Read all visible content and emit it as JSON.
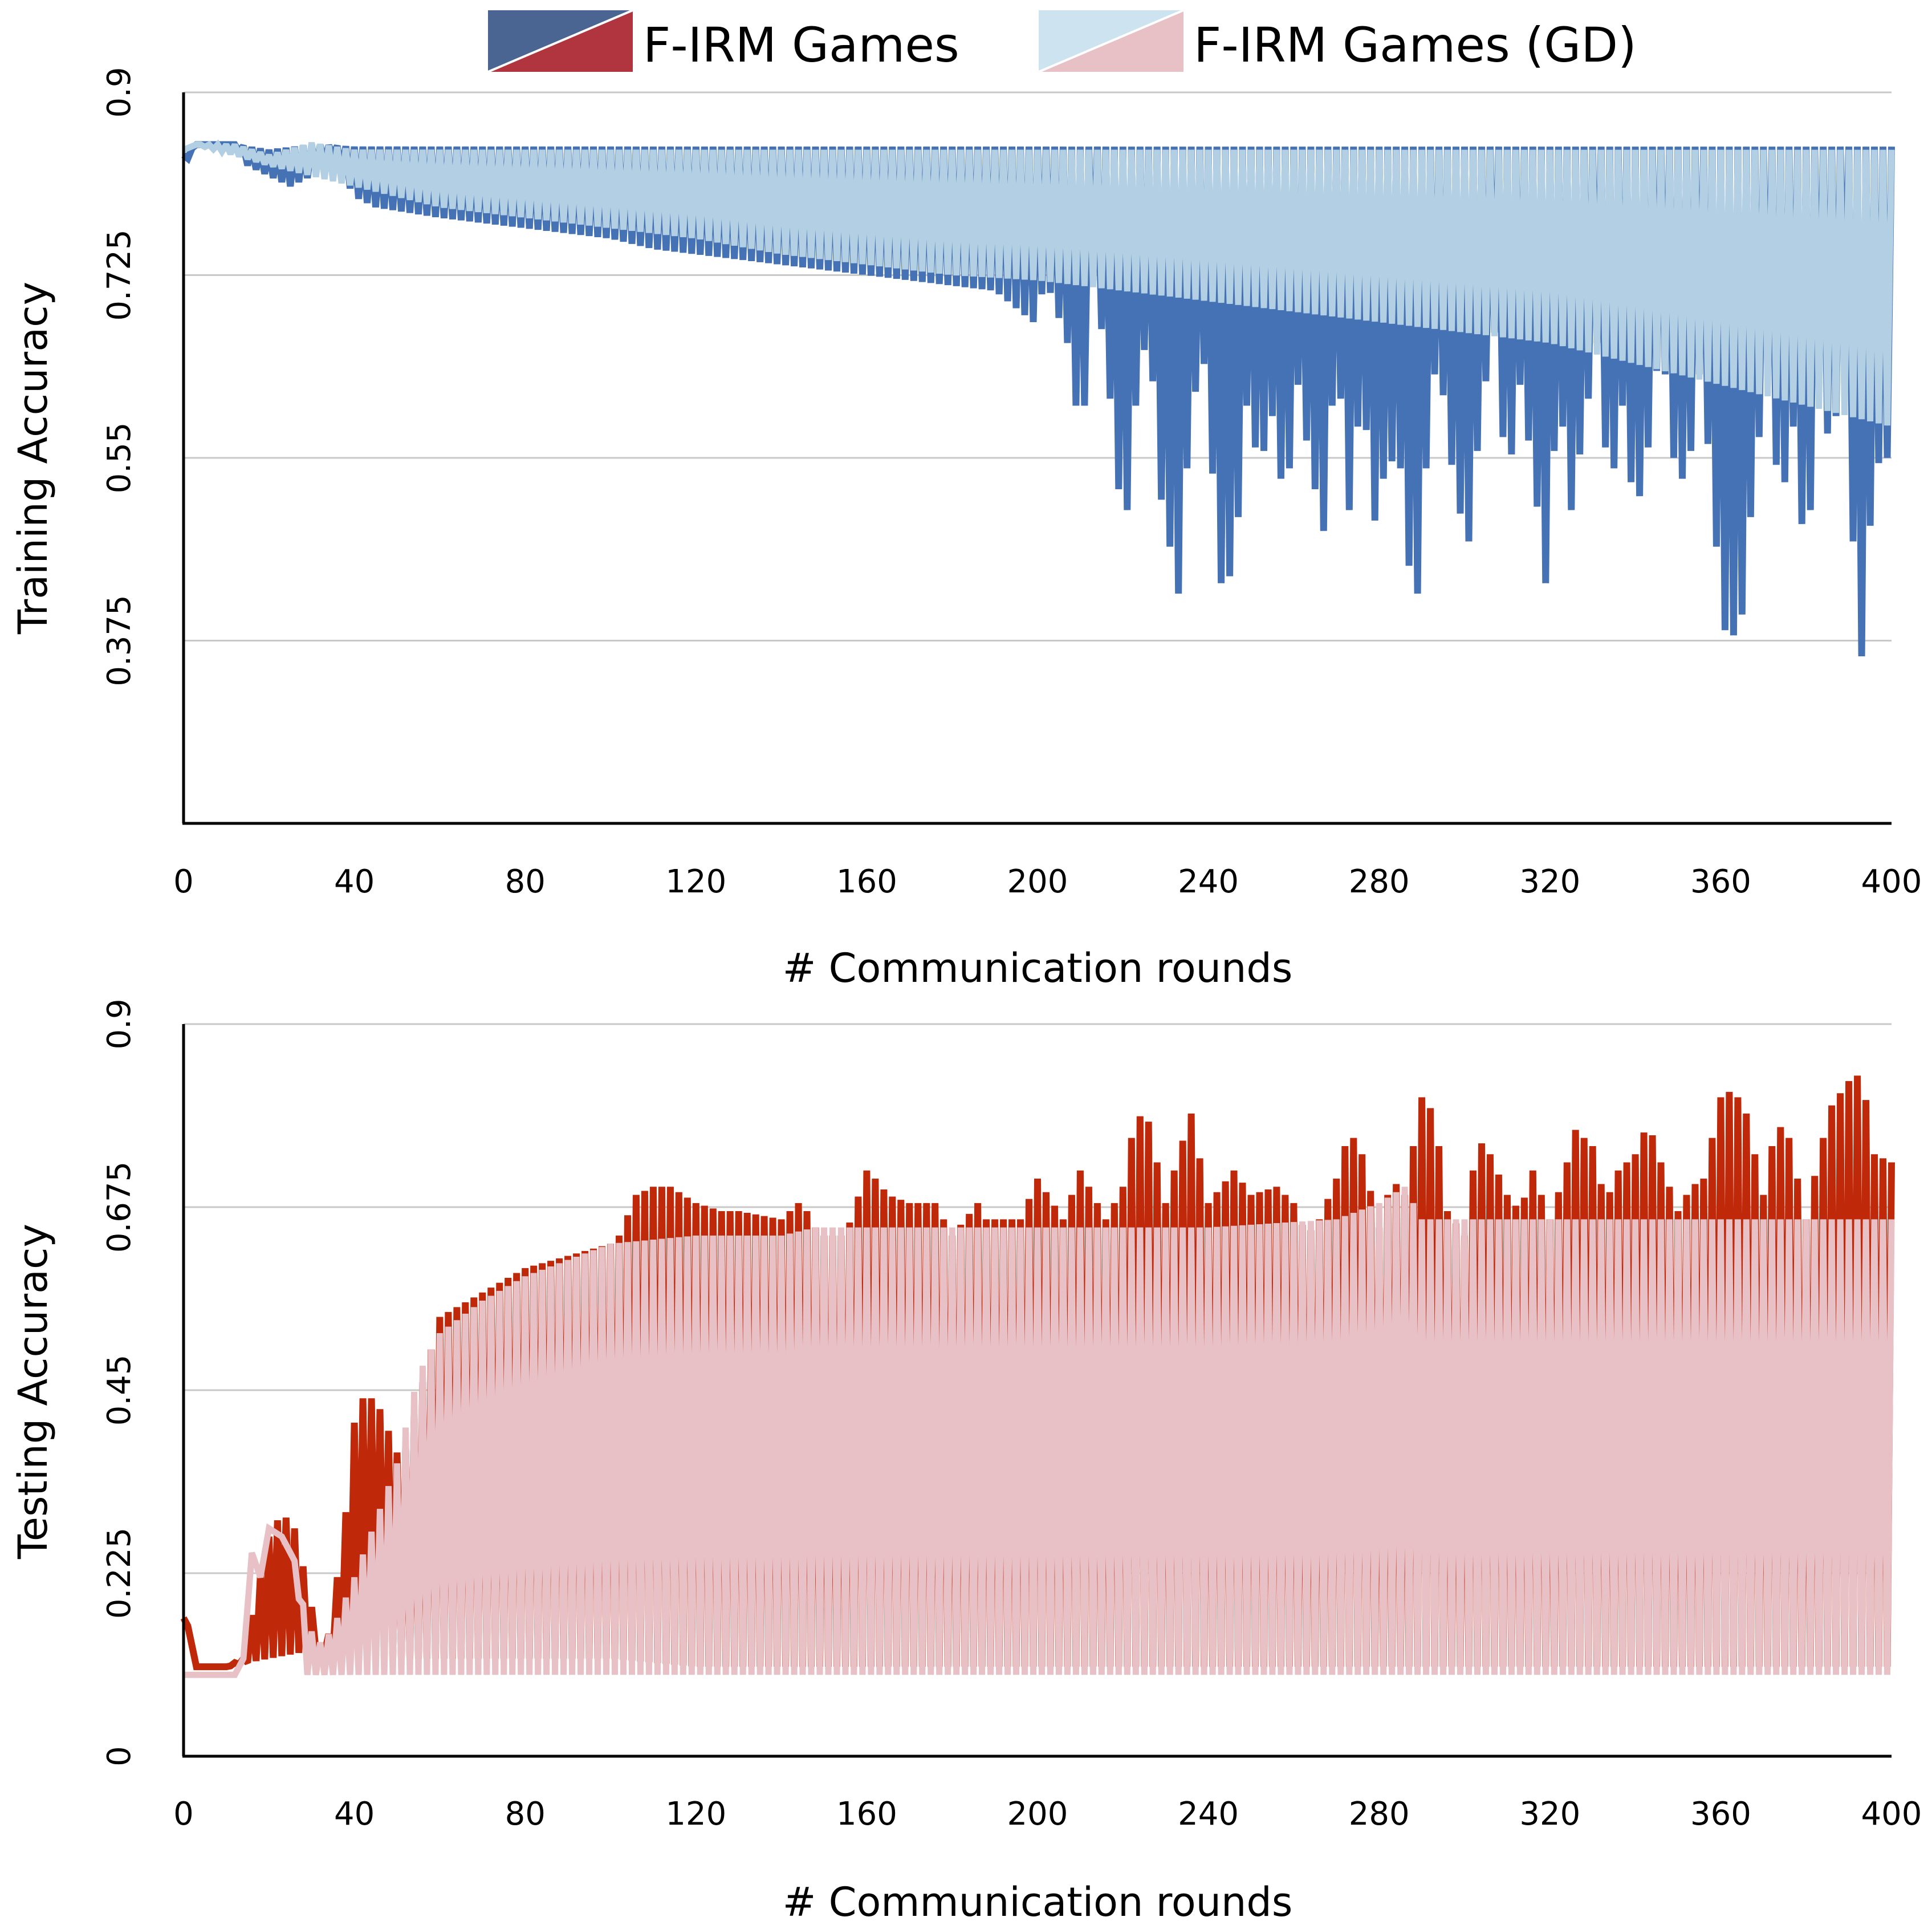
{
  "legend": [
    {
      "label": "F-IRM Games",
      "colors": [
        "#4b6593",
        "#b0353f"
      ]
    },
    {
      "label": "F-IRM Games (GD)",
      "colors": [
        "#cde4f0",
        "#e8c1c7"
      ]
    }
  ],
  "chart_data": [
    {
      "type": "line",
      "title": "",
      "xlabel": "# Communication rounds",
      "ylabel": "Training Accuracy",
      "xlim": [
        0,
        400
      ],
      "ylim": [
        0.2,
        0.9
      ],
      "x_ticks": [
        "0",
        "40",
        "80",
        "120",
        "160",
        "200",
        "240",
        "280",
        "320",
        "360",
        "400"
      ],
      "y_ticks": [
        {
          "value": 0.375,
          "label": "0.375"
        },
        {
          "value": 0.55,
          "label": "0.55"
        },
        {
          "value": 0.725,
          "label": "0.725"
        },
        {
          "value": 0.9,
          "label": "0.9"
        }
      ],
      "grid": true,
      "series": [
        {
          "name": "F-IRM Games",
          "color": "#4472b4",
          "alternating": true,
          "high_x": [
            0,
            3,
            12,
            20,
            30,
            40,
            80,
            120,
            160,
            200,
            240,
            280,
            320,
            360,
            400
          ],
          "high_y": [
            0.84,
            0.85,
            0.85,
            0.845,
            0.85,
            0.848,
            0.848,
            0.848,
            0.848,
            0.848,
            0.848,
            0.848,
            0.848,
            0.848,
            0.848
          ],
          "low_x": [
            0,
            3,
            12,
            15,
            20,
            25,
            30,
            35,
            40,
            45,
            60,
            80,
            100,
            110,
            120,
            130,
            140,
            150,
            160,
            170,
            180,
            190,
            196,
            199,
            202,
            207,
            209,
            211,
            213,
            216,
            219,
            221,
            223,
            226,
            229,
            233,
            236,
            239,
            243,
            246,
            249,
            252,
            255,
            258,
            261,
            264,
            267,
            270,
            273,
            276,
            279,
            282,
            285,
            288,
            290,
            292,
            295,
            298,
            301,
            304,
            307,
            310,
            313,
            316,
            319,
            322,
            325,
            328,
            331,
            334,
            337,
            340,
            343,
            346,
            349,
            352,
            355,
            358,
            360,
            362,
            365,
            368,
            371,
            374,
            377,
            380,
            383,
            386,
            389,
            392,
            394,
            396,
            398,
            400
          ],
          "low_y": [
            0.83,
            0.85,
            0.85,
            0.83,
            0.82,
            0.81,
            0.82,
            0.84,
            0.8,
            0.79,
            0.78,
            0.77,
            0.76,
            0.75,
            0.745,
            0.74,
            0.735,
            0.73,
            0.725,
            0.72,
            0.715,
            0.71,
            0.69,
            0.68,
            0.72,
            0.66,
            0.6,
            0.6,
            0.72,
            0.65,
            0.52,
            0.5,
            0.6,
            0.68,
            0.51,
            0.42,
            0.6,
            0.64,
            0.43,
            0.44,
            0.6,
            0.54,
            0.59,
            0.5,
            0.62,
            0.54,
            0.48,
            0.66,
            0.5,
            0.62,
            0.49,
            0.55,
            0.54,
            0.4,
            0.44,
            0.64,
            0.61,
            0.51,
            0.47,
            0.6,
            0.67,
            0.52,
            0.62,
            0.54,
            0.43,
            0.62,
            0.5,
            0.58,
            0.66,
            0.51,
            0.6,
            0.49,
            0.56,
            0.67,
            0.55,
            0.52,
            0.63,
            0.53,
            0.4,
            0.37,
            0.4,
            0.54,
            0.63,
            0.5,
            0.58,
            0.44,
            0.62,
            0.55,
            0.67,
            0.37,
            0.35,
            0.62,
            0.47,
            0.63
          ]
        },
        {
          "name": "F-IRM Games (GD)",
          "color": "#b2cfe3",
          "alternating": true,
          "high_x": [
            0,
            3,
            12,
            20,
            30,
            40,
            80,
            120,
            160,
            200,
            240,
            280,
            320,
            360,
            400
          ],
          "high_y": [
            0.845,
            0.85,
            0.85,
            0.84,
            0.852,
            0.845,
            0.845,
            0.845,
            0.845,
            0.845,
            0.845,
            0.845,
            0.845,
            0.845,
            0.845
          ],
          "low_x": [
            0,
            3,
            12,
            20,
            30,
            40,
            60,
            80,
            100,
            120,
            140,
            160,
            180,
            200,
            220,
            240,
            260,
            280,
            300,
            320,
            340,
            360,
            380,
            400
          ],
          "low_y": [
            0.845,
            0.85,
            0.84,
            0.83,
            0.82,
            0.81,
            0.79,
            0.78,
            0.77,
            0.76,
            0.745,
            0.735,
            0.725,
            0.72,
            0.71,
            0.7,
            0.69,
            0.68,
            0.67,
            0.66,
            0.64,
            0.62,
            0.6,
            0.58
          ]
        }
      ]
    },
    {
      "type": "line",
      "title": "",
      "xlabel": "# Communication rounds",
      "ylabel": "Testing Accuracy",
      "xlim": [
        0,
        400
      ],
      "ylim": [
        0,
        0.9
      ],
      "x_ticks": [
        "0",
        "40",
        "80",
        "120",
        "160",
        "200",
        "240",
        "280",
        "320",
        "360",
        "400"
      ],
      "y_ticks": [
        {
          "value": 0,
          "label": "0"
        },
        {
          "value": 0.225,
          "label": "0.225"
        },
        {
          "value": 0.45,
          "label": "0.45"
        },
        {
          "value": 0.675,
          "label": "0.675"
        },
        {
          "value": 0.9,
          "label": "0.9"
        }
      ],
      "grid": true,
      "series": [
        {
          "name": "F-IRM Games",
          "color": "#c0280a",
          "alternating": true,
          "high_x": [
            0,
            1,
            3,
            10,
            14,
            17,
            20,
            23,
            26,
            29,
            32,
            34,
            36,
            38,
            40,
            42,
            45,
            48,
            51,
            60,
            80,
            100,
            102,
            106,
            110,
            114,
            120,
            126,
            130,
            140,
            144,
            146,
            148,
            150,
            155,
            160,
            162,
            165,
            170,
            176,
            180,
            186,
            188,
            190,
            196,
            200,
            206,
            210,
            216,
            220,
            223,
            226,
            230,
            233,
            236,
            240,
            246,
            250,
            256,
            260,
            263,
            266,
            270,
            273,
            276,
            280,
            283,
            286,
            290,
            293,
            296,
            300,
            303,
            306,
            310,
            313,
            316,
            320,
            323,
            326,
            330,
            333,
            336,
            340,
            343,
            346,
            350,
            353,
            356,
            360,
            363,
            366,
            370,
            373,
            376,
            380,
            383,
            386,
            390,
            393,
            396,
            400
          ],
          "high_y": [
            0.17,
            0.16,
            0.11,
            0.11,
            0.12,
            0.2,
            0.27,
            0.3,
            0.28,
            0.21,
            0.13,
            0.15,
            0.22,
            0.3,
            0.41,
            0.44,
            0.44,
            0.4,
            0.36,
            0.54,
            0.6,
            0.63,
            0.64,
            0.69,
            0.7,
            0.7,
            0.68,
            0.67,
            0.67,
            0.66,
            0.68,
            0.67,
            0.65,
            0.64,
            0.64,
            0.72,
            0.71,
            0.69,
            0.68,
            0.68,
            0.64,
            0.68,
            0.66,
            0.66,
            0.66,
            0.71,
            0.66,
            0.72,
            0.66,
            0.7,
            0.79,
            0.78,
            0.68,
            0.74,
            0.79,
            0.68,
            0.72,
            0.69,
            0.7,
            0.68,
            0.64,
            0.66,
            0.71,
            0.77,
            0.74,
            0.65,
            0.71,
            0.69,
            0.81,
            0.79,
            0.67,
            0.64,
            0.76,
            0.74,
            0.69,
            0.67,
            0.72,
            0.66,
            0.71,
            0.77,
            0.75,
            0.68,
            0.72,
            0.74,
            0.78,
            0.73,
            0.67,
            0.7,
            0.71,
            0.81,
            0.82,
            0.79,
            0.69,
            0.78,
            0.76,
            0.66,
            0.74,
            0.8,
            0.83,
            0.84,
            0.74,
            0.73
          ],
          "low_x": [
            0,
            1,
            3,
            10,
            20,
            30,
            40,
            60,
            80,
            100,
            120,
            140,
            160,
            180,
            200,
            240,
            280,
            320,
            360,
            400
          ],
          "low_y": [
            0.17,
            0.16,
            0.11,
            0.11,
            0.12,
            0.13,
            0.12,
            0.12,
            0.12,
            0.12,
            0.11,
            0.11,
            0.11,
            0.11,
            0.11,
            0.11,
            0.11,
            0.11,
            0.11,
            0.11
          ]
        },
        {
          "name": "F-IRM Games (GD)",
          "color": "#e8c1c7",
          "alternating": true,
          "high_x": [
            0,
            10,
            12,
            14,
            16,
            18,
            20,
            23,
            26,
            29,
            32,
            34,
            36,
            40,
            45,
            50,
            55,
            60,
            65,
            70,
            80,
            90,
            100,
            120,
            140,
            148,
            152,
            160,
            200,
            240,
            270,
            280,
            286,
            290,
            300,
            320,
            340,
            360,
            380,
            400
          ],
          "high_y": [
            0.1,
            0.1,
            0.1,
            0.12,
            0.25,
            0.22,
            0.28,
            0.27,
            0.24,
            0.16,
            0.14,
            0.15,
            0.17,
            0.22,
            0.29,
            0.36,
            0.47,
            0.52,
            0.54,
            0.56,
            0.59,
            0.61,
            0.63,
            0.64,
            0.64,
            0.65,
            0.65,
            0.65,
            0.65,
            0.65,
            0.66,
            0.68,
            0.7,
            0.66,
            0.66,
            0.66,
            0.66,
            0.66,
            0.66,
            0.66
          ],
          "low_x": [
            0,
            10,
            12,
            14,
            16,
            18,
            20,
            23,
            26,
            29,
            32,
            34,
            36,
            40,
            60,
            80,
            100,
            120,
            160,
            200,
            240,
            280,
            320,
            360,
            400
          ],
          "low_y": [
            0.1,
            0.1,
            0.1,
            0.12,
            0.25,
            0.22,
            0.28,
            0.27,
            0.24,
            0.1,
            0.1,
            0.1,
            0.1,
            0.1,
            0.1,
            0.1,
            0.1,
            0.1,
            0.1,
            0.1,
            0.1,
            0.1,
            0.1,
            0.1,
            0.1
          ]
        }
      ]
    }
  ]
}
